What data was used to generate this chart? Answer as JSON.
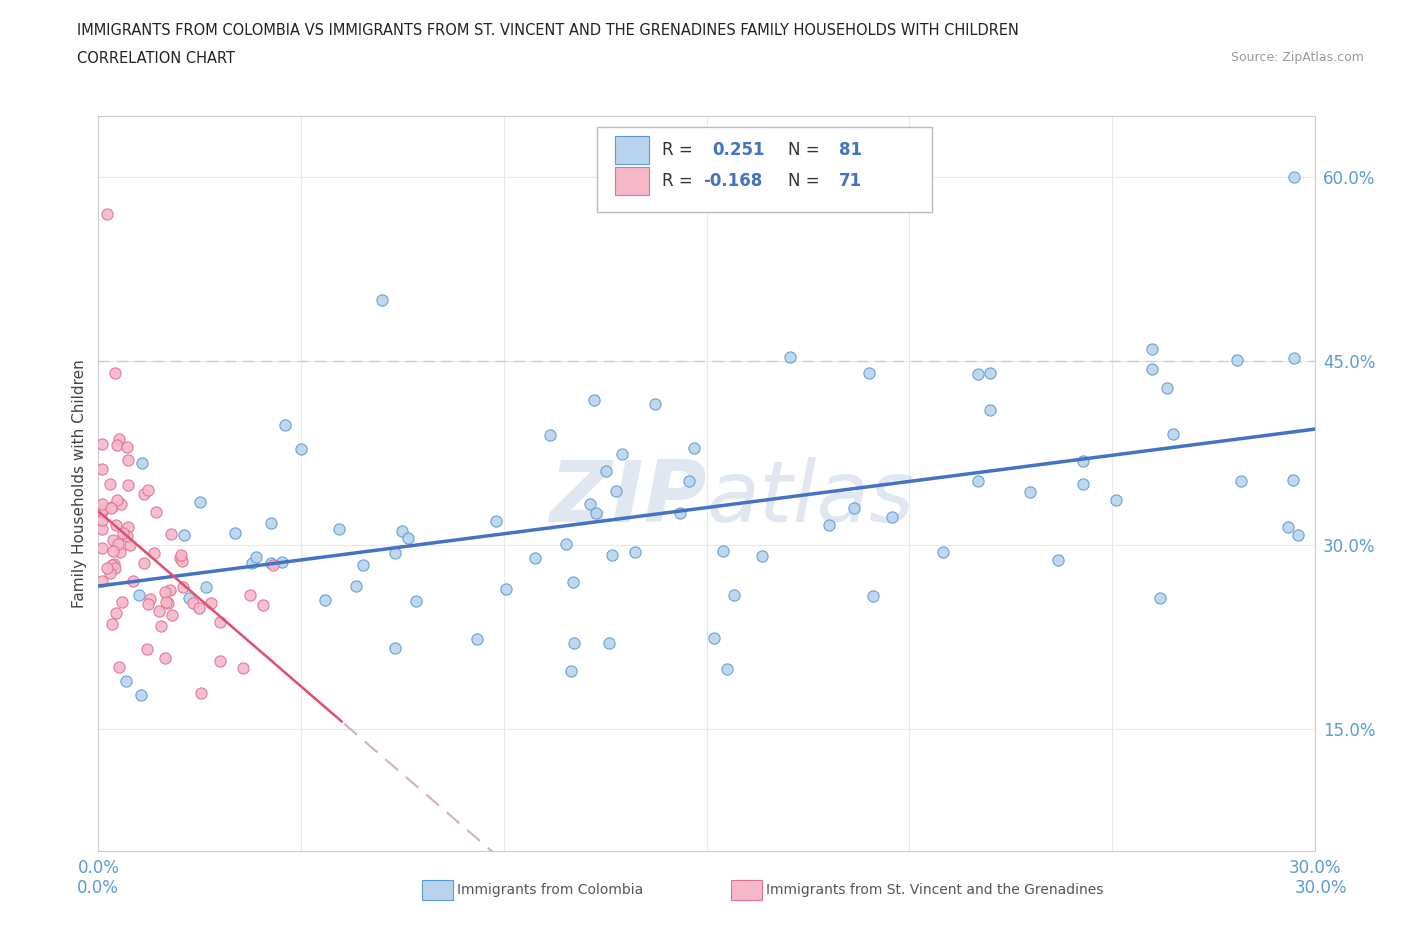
{
  "title_line1": "IMMIGRANTS FROM COLOMBIA VS IMMIGRANTS FROM ST. VINCENT AND THE GRENADINES FAMILY HOUSEHOLDS WITH CHILDREN",
  "title_line2": "CORRELATION CHART",
  "source": "Source: ZipAtlas.com",
  "ylabel": "Family Households with Children",
  "x_min": 0.0,
  "x_max": 0.3,
  "y_min": 0.05,
  "y_max": 0.65,
  "y_ticks": [
    0.15,
    0.3,
    0.45,
    0.6
  ],
  "y_tick_labels": [
    "15.0%",
    "30.0%",
    "45.0%",
    "60.0%"
  ],
  "x_tick_labels_show": [
    "0.0%",
    "30.0%"
  ],
  "R_colombia": 0.251,
  "N_colombia": 81,
  "R_vincent": -0.168,
  "N_vincent": 71,
  "color_colombia_fill": "#b8d4ec",
  "color_colombia_edge": "#5b9bd5",
  "color_vincent_fill": "#f4b8c8",
  "color_vincent_edge": "#e07090",
  "color_colombia_line": "#4472c4",
  "color_vincent_line_dash": "#d0b0bc",
  "color_vincent_line_solid": "#e05070",
  "watermark_color": "#ccd8e8"
}
